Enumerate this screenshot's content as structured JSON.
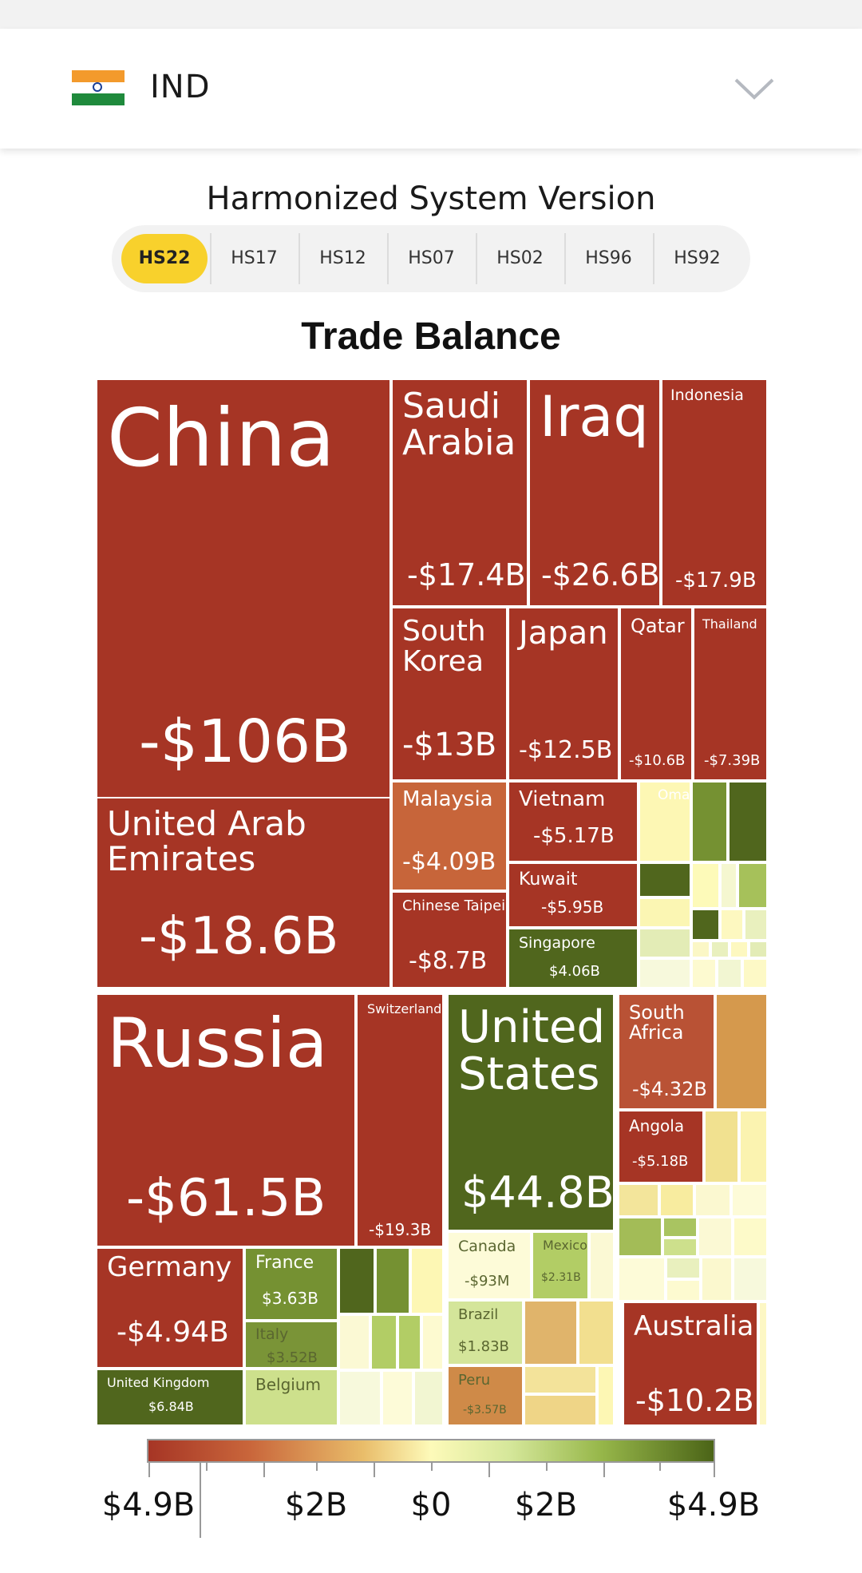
{
  "header": {
    "country": "IND",
    "flag_icon": "india-flag-icon",
    "dropdown_icon": "chevron-down-icon"
  },
  "hs_versions": {
    "title": "Harmonized System Version",
    "options": [
      "HS22",
      "HS17",
      "HS12",
      "HS07",
      "HS02",
      "HS96",
      "HS92"
    ],
    "selected": "HS22"
  },
  "chart_data": {
    "type": "treemap",
    "title": "Trade Balance",
    "colors": {
      "deficit": "#a63525",
      "surplus": "#4b6417",
      "neutral": "#fdfab9"
    },
    "labeled_tiles": [
      {
        "name": "China",
        "value": "-$106B"
      },
      {
        "name": "Saudi Arabia",
        "value": "-$17.4B"
      },
      {
        "name": "Iraq",
        "value": "-$26.6B"
      },
      {
        "name": "Indonesia",
        "value": "-$17.9B"
      },
      {
        "name": "South Korea",
        "value": "-$13B"
      },
      {
        "name": "Japan",
        "value": "-$12.5B"
      },
      {
        "name": "Qatar",
        "value": "-$10.6B"
      },
      {
        "name": "Thailand",
        "value": "-$7.39B"
      },
      {
        "name": "United Arab Emirates",
        "value": "-$18.6B"
      },
      {
        "name": "Malaysia",
        "value": "-$4.09B"
      },
      {
        "name": "Vietnam",
        "value": "-$5.17B"
      },
      {
        "name": "Oman",
        "value": ""
      },
      {
        "name": "Kuwait",
        "value": "-$5.95B"
      },
      {
        "name": "Chinese Taipei",
        "value": "-$8.7B"
      },
      {
        "name": "Singapore",
        "value": "$4.06B"
      },
      {
        "name": "Russia",
        "value": "-$61.5B"
      },
      {
        "name": "Switzerland",
        "value": "-$19.3B"
      },
      {
        "name": "United States",
        "value": "$44.8B"
      },
      {
        "name": "South Africa",
        "value": "-$4.32B"
      },
      {
        "name": "Angola",
        "value": "-$5.18B"
      },
      {
        "name": "Germany",
        "value": "-$4.94B"
      },
      {
        "name": "France",
        "value": "$3.63B"
      },
      {
        "name": "Italy",
        "value": "$3.52B"
      },
      {
        "name": "United Kingdom",
        "value": "$6.84B"
      },
      {
        "name": "Belgium",
        "value": ""
      },
      {
        "name": "Canada",
        "value": "-$93M"
      },
      {
        "name": "Mexico",
        "value": "$2.31B"
      },
      {
        "name": "Brazil",
        "value": "$1.83B"
      },
      {
        "name": "Peru",
        "value": "-$3.57B"
      },
      {
        "name": "Australia",
        "value": "-$10.2B"
      }
    ],
    "legend": {
      "type": "diverging-gradient",
      "labels": [
        "$4.9B",
        "$2B",
        "$0",
        "$2B",
        "$4.9B"
      ]
    }
  }
}
